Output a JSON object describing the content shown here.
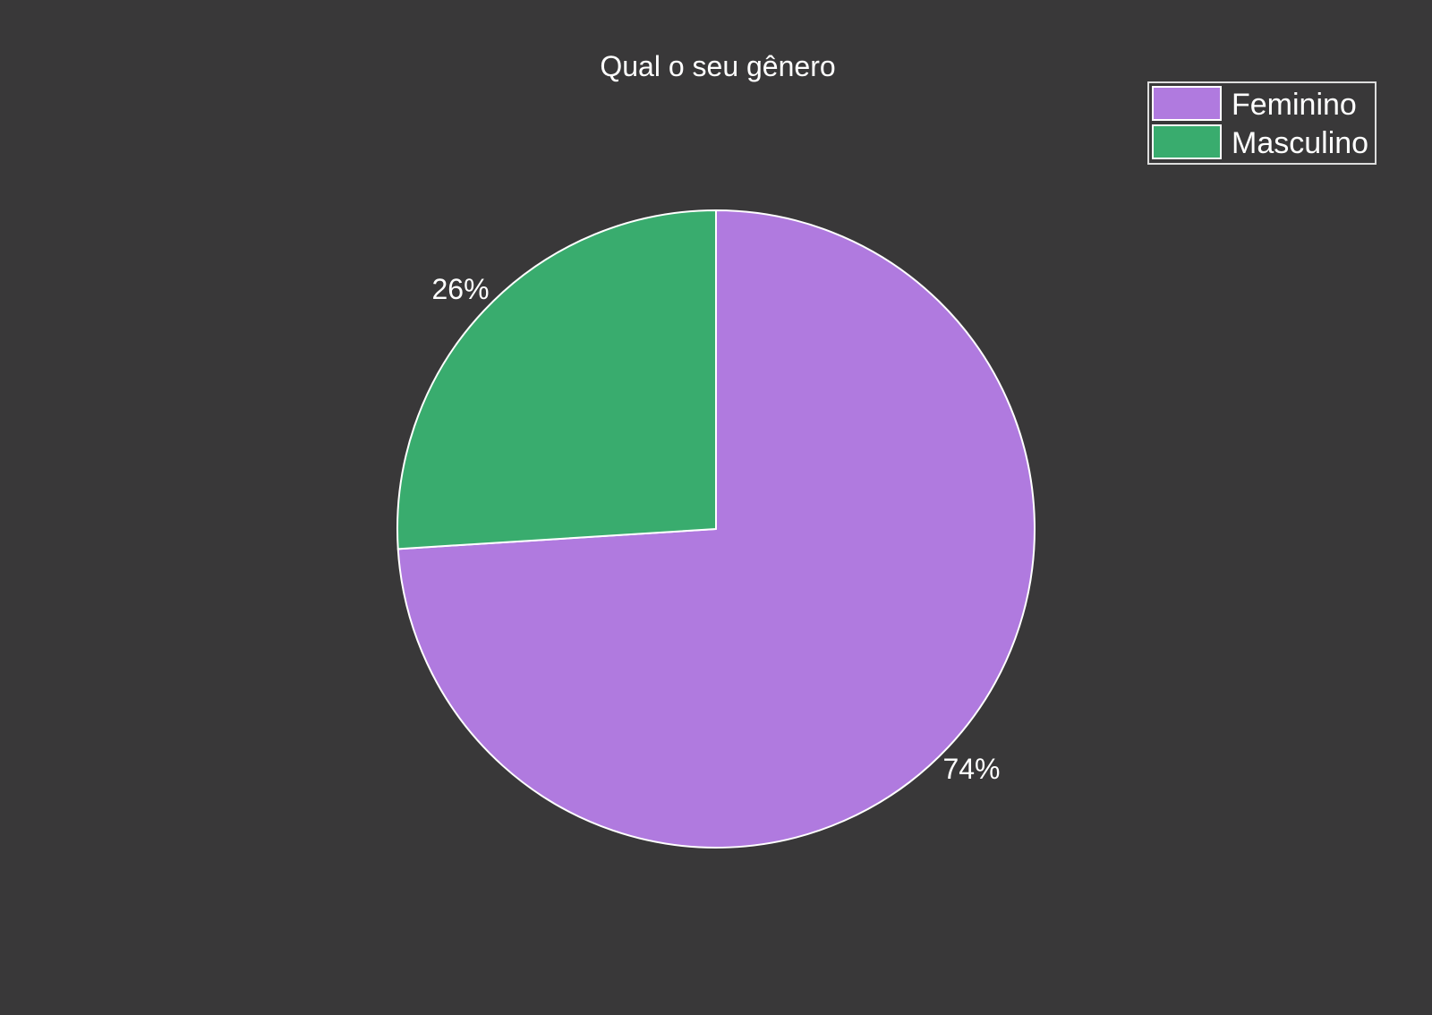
{
  "chart_data": {
    "type": "pie",
    "title": "Qual o seu gênero",
    "categories": [
      "Feminino",
      "Masculino"
    ],
    "values": [
      74,
      26
    ],
    "value_labels": [
      "74%",
      "26%"
    ],
    "colors": [
      "#b07adf",
      "#39ac6e"
    ],
    "start_angle_deg": 90,
    "direction": "clockwise",
    "legend": {
      "placement": "top-right",
      "entries": [
        "Feminino",
        "Masculino"
      ]
    },
    "background": "#393839",
    "edge_color": "#ffffff"
  }
}
